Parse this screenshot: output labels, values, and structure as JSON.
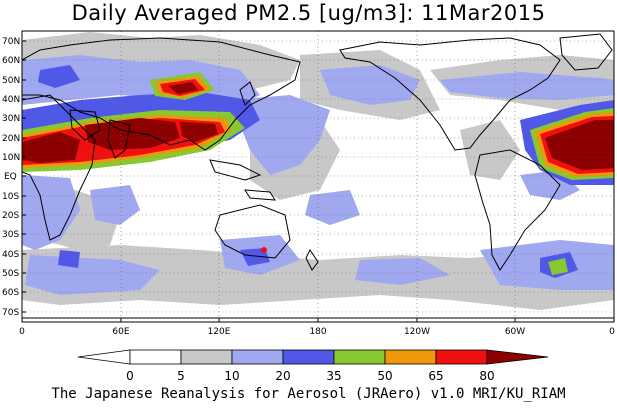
{
  "title": "Daily Averaged PM2.5 [ug/m3]: 11Mar2015",
  "lat_labels": [
    "70N",
    "60N",
    "50N",
    "40N",
    "30N",
    "20N",
    "10N",
    "EQ",
    "10S",
    "20S",
    "30S",
    "40S",
    "50S",
    "60S",
    "70S"
  ],
  "lon_labels": [
    "0",
    "60E",
    "120E",
    "180",
    "120W",
    "60W",
    "0"
  ],
  "colorbar": {
    "thresholds": [
      "0",
      "5",
      "10",
      "20",
      "35",
      "50",
      "65",
      "80"
    ],
    "colors": [
      "#ffffff",
      "#c8c8c8",
      "#a0a8f0",
      "#5058e8",
      "#88c830",
      "#f0960a",
      "#f01010",
      "#8c0000"
    ]
  },
  "footer": "The Japanese Reanalysis for Aerosol (JRAero) v1.0 MRI/KU_RIAM"
}
